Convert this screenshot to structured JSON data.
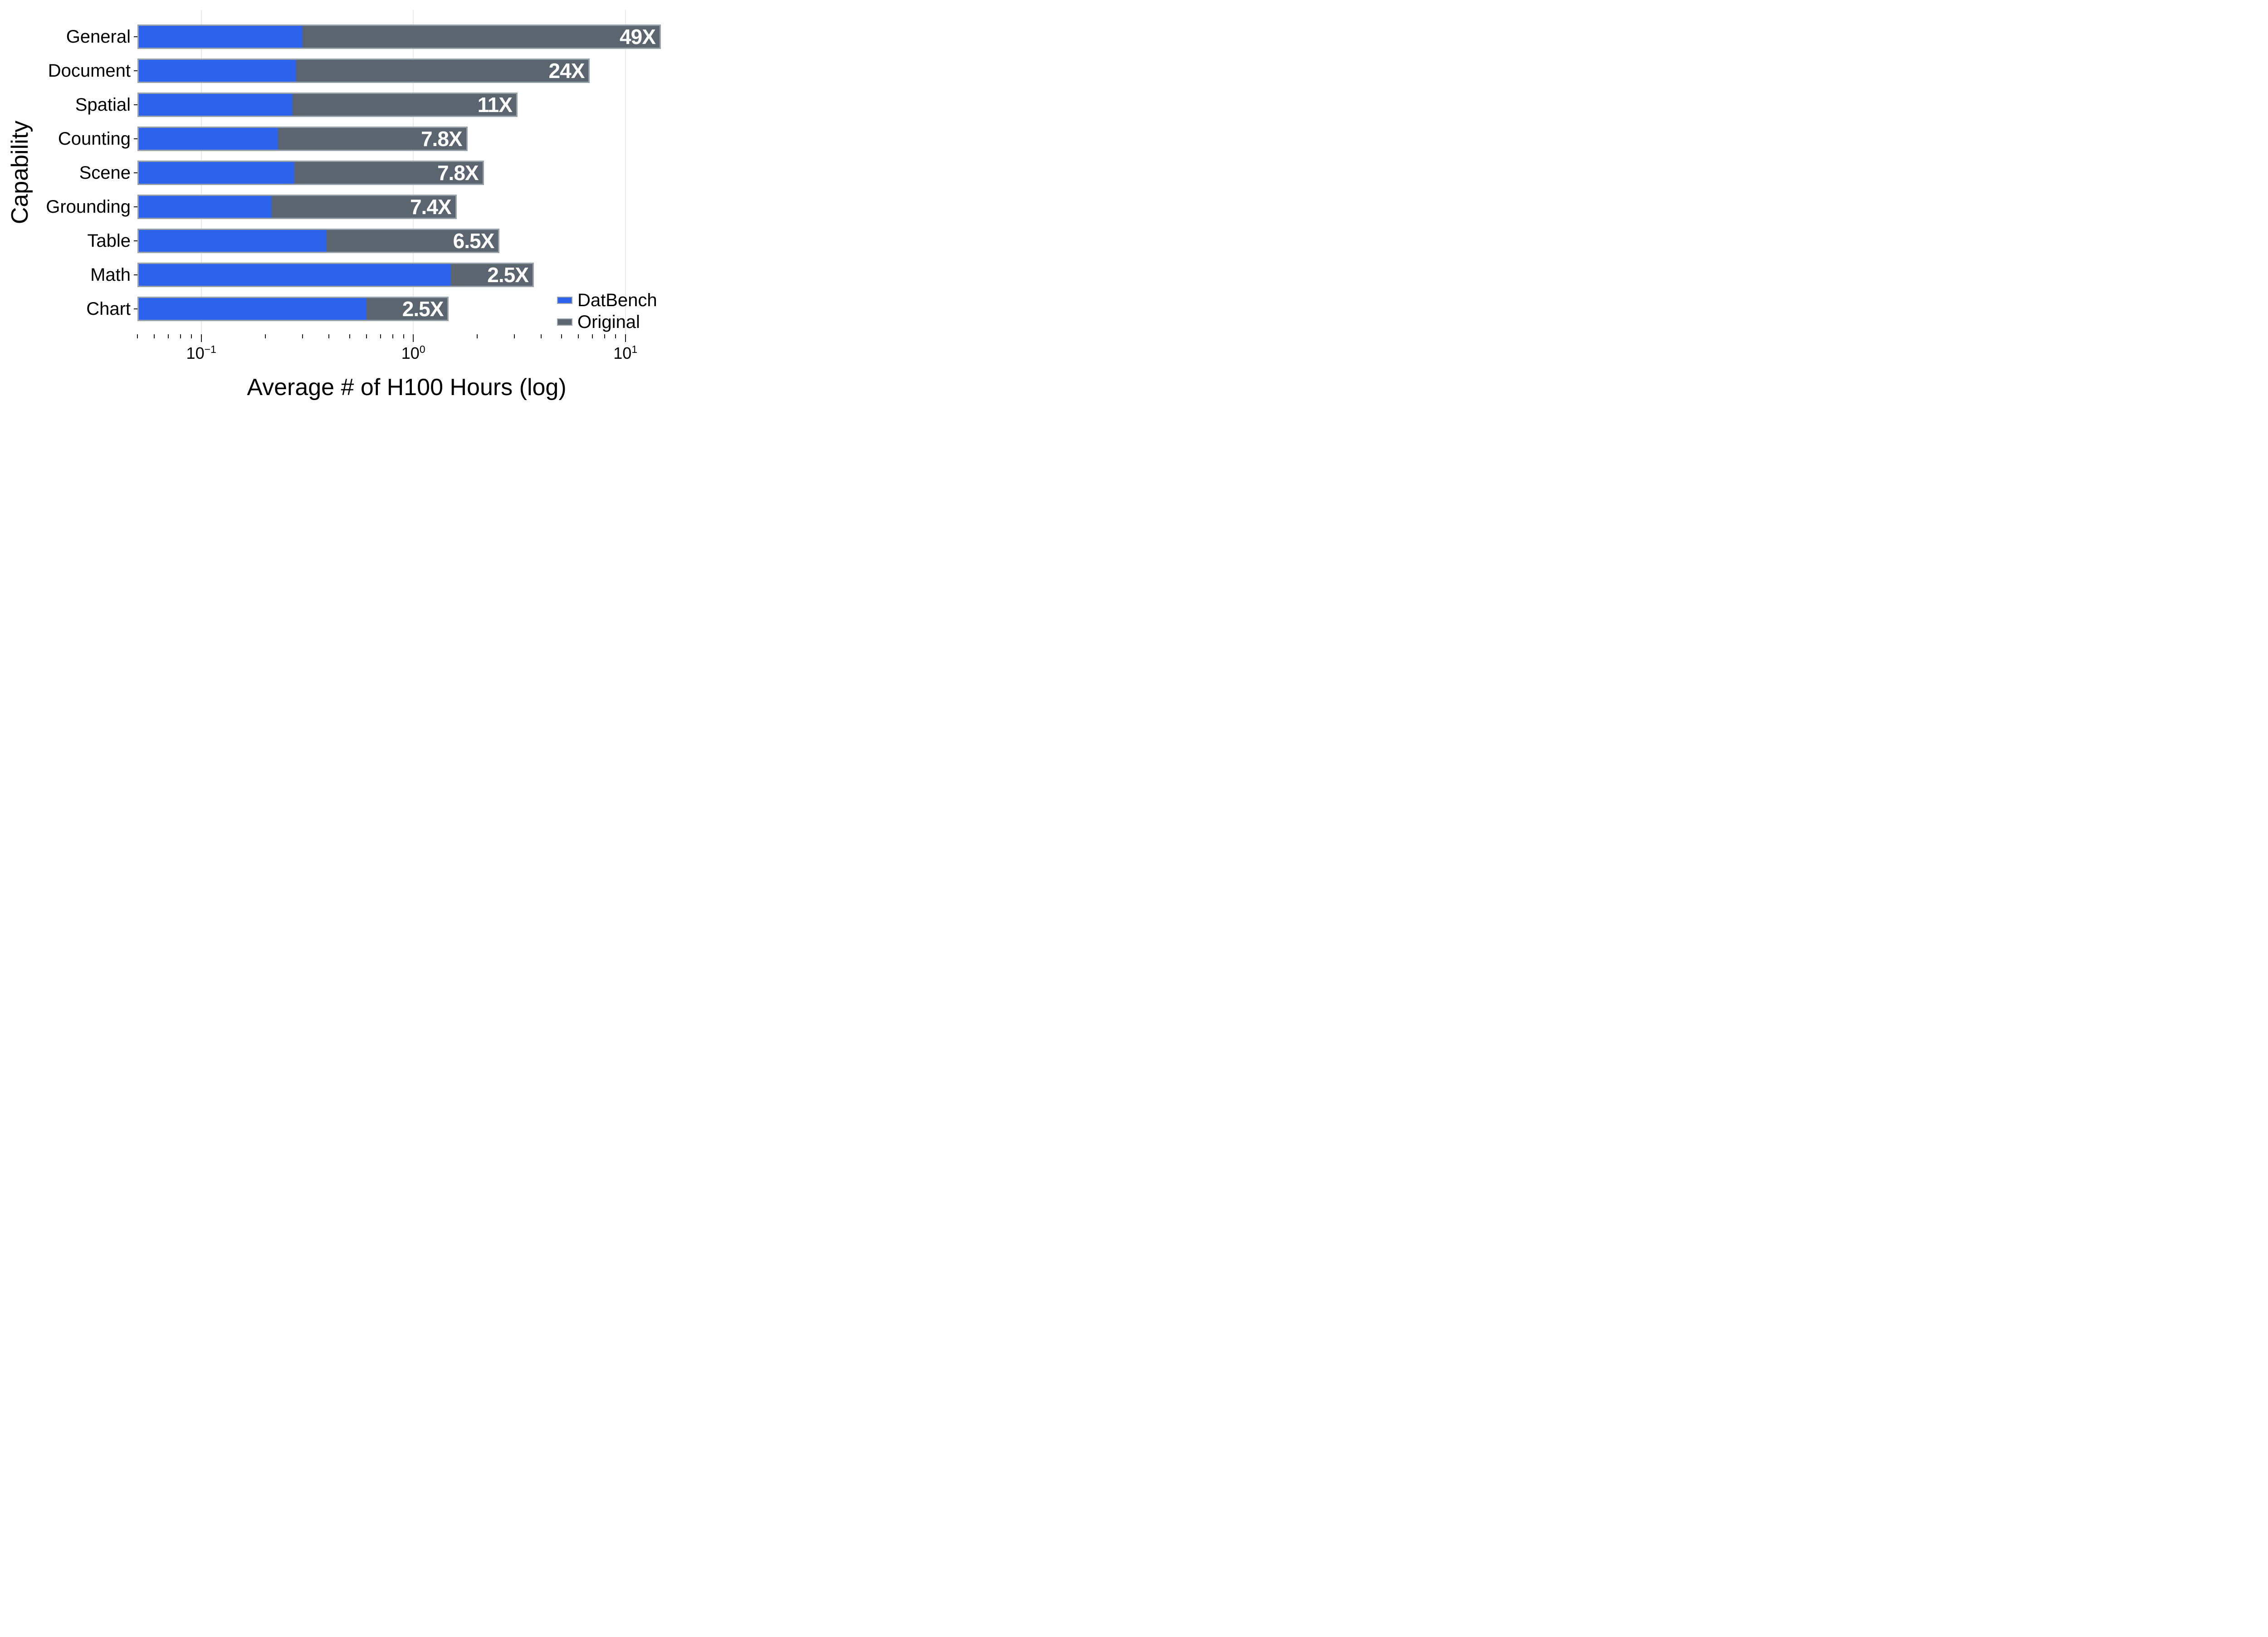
{
  "axes": {
    "x_title": "Average # of H100 Hours (log)",
    "y_title": "Capability"
  },
  "legend": {
    "position": "lower right",
    "items": [
      {
        "label": "DatBench",
        "color": "#2c62ec"
      },
      {
        "label": "Original",
        "color": "#5b6570"
      }
    ]
  },
  "chart_data": {
    "type": "bar",
    "orientation": "horizontal",
    "overlaid_from_zero": true,
    "title": "",
    "xlabel": "Average # of H100 Hours (log)",
    "ylabel": "Capability",
    "x_scale": "log",
    "xlim": [
      0.05,
      17.3
    ],
    "grid": "vertical major gridlines only",
    "grid_color": "#e7e9eb",
    "bar_edge_color": "#98a2ab",
    "categories": [
      "General",
      "Document",
      "Spatial",
      "Counting",
      "Scene",
      "Grounding",
      "Table",
      "Math",
      "Chart"
    ],
    "series": [
      {
        "name": "DatBench",
        "color": "#2c62ec",
        "values": [
          0.3,
          0.28,
          0.27,
          0.23,
          0.275,
          0.215,
          0.39,
          1.5,
          0.6
        ]
      },
      {
        "name": "Original",
        "color": "#5b6570",
        "values": [
          14.7,
          6.8,
          3.1,
          1.8,
          2.15,
          1.6,
          2.55,
          3.7,
          1.47
        ]
      }
    ],
    "bar_labels": [
      "49X",
      "24X",
      "11X",
      "7.8X",
      "7.8X",
      "7.4X",
      "6.5X",
      "2.5X",
      "2.5X"
    ],
    "bar_label_meaning": "Original hours divided by DatBench hours",
    "x_major_ticks": [
      0.1,
      1,
      10
    ],
    "x_major_tick_labels": [
      {
        "base": "10",
        "exp": "−1"
      },
      {
        "base": "10",
        "exp": "0"
      },
      {
        "base": "10",
        "exp": "1"
      }
    ],
    "x_minor_ticks": [
      0.05,
      0.06,
      0.07,
      0.08,
      0.09,
      0.2,
      0.3,
      0.4,
      0.5,
      0.6,
      0.7,
      0.8,
      0.9,
      2,
      3,
      4,
      5,
      6,
      7,
      8,
      9
    ]
  }
}
